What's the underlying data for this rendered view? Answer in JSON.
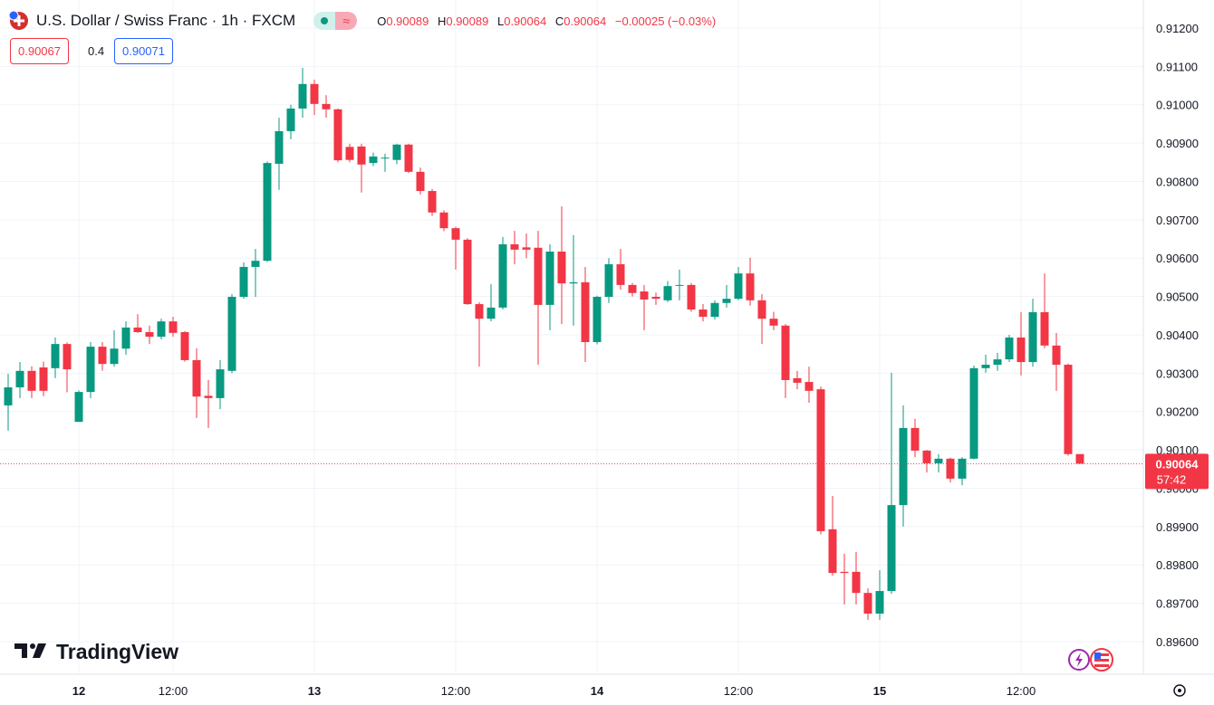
{
  "header": {
    "title": "U.S. Dollar / Swiss Franc · 1h · FXCM",
    "o_label": "O",
    "open": "0.90089",
    "h_label": "H",
    "high": "0.90089",
    "l_label": "L",
    "low": "0.90064",
    "c_label": "C",
    "close": "0.90064",
    "change": "−0.00025 (−0.03%)",
    "sell": "0.90067",
    "spread": "0.4",
    "buy": "0.90071"
  },
  "logo": "TradingView",
  "chart_data": {
    "type": "candlestick",
    "up_color": "#089981",
    "down_color": "#f23645",
    "grid": true,
    "categories": [
      null,
      null,
      null,
      null,
      null,
      null,
      "12",
      null,
      null,
      null,
      null,
      null,
      null,
      null,
      "12:00",
      null,
      null,
      null,
      null,
      null,
      null,
      null,
      null,
      null,
      null,
      null,
      "13",
      null,
      null,
      null,
      null,
      null,
      null,
      null,
      null,
      null,
      null,
      null,
      "12:00",
      null,
      null,
      null,
      null,
      null,
      null,
      null,
      null,
      null,
      null,
      null,
      "14",
      null,
      null,
      null,
      null,
      null,
      null,
      null,
      null,
      null,
      null,
      null,
      "12:00",
      null,
      null,
      null,
      null,
      null,
      null,
      null,
      null,
      null,
      null,
      null,
      "15",
      null,
      null,
      null,
      null,
      null,
      null,
      null,
      null,
      null,
      null,
      null,
      "12:00",
      null,
      null,
      null,
      null,
      null
    ],
    "open": [
      0.90216,
      0.90263,
      0.90306,
      0.90315,
      0.90313,
      0.90376,
      0.90173,
      0.90251,
      0.90369,
      0.90324,
      0.90364,
      0.90419,
      0.90407,
      0.90395,
      0.90435,
      0.90407,
      0.90334,
      0.90241,
      0.90235,
      0.90306,
      0.90499,
      0.90577,
      0.90593,
      0.90846,
      0.90931,
      0.9099,
      0.91054,
      0.91002,
      0.90988,
      0.9089,
      0.90891,
      0.90848,
      0.9086,
      0.90856,
      0.90896,
      0.90825,
      0.90775,
      0.90719,
      0.90678,
      0.90648,
      0.9048,
      0.90442,
      0.90471,
      0.90636,
      0.90628,
      0.90627,
      0.90478,
      0.90617,
      0.90534,
      0.90537,
      0.90381,
      0.90499,
      0.90584,
      0.9053,
      0.90513,
      0.90499,
      0.9049,
      0.90528,
      0.9053,
      0.90466,
      0.90447,
      0.90483,
      0.90494,
      0.9056,
      0.9049,
      0.90442,
      0.90424,
      0.90287,
      0.90277,
      0.90258,
      0.89893,
      0.89782,
      0.89782,
      0.89727,
      0.89673,
      0.89732,
      0.89956,
      0.90157,
      0.90098,
      0.90065,
      0.90077,
      0.90025,
      0.90077,
      0.90313,
      0.90322,
      0.90336,
      0.90393,
      0.90329,
      0.90459,
      0.90372,
      0.90322,
      0.90089
    ],
    "high": [
      0.90298,
      0.90329,
      0.90318,
      0.9033,
      0.90393,
      0.9038,
      0.90255,
      0.90381,
      0.90381,
      0.90412,
      0.90435,
      0.90454,
      0.90424,
      0.90442,
      0.90447,
      0.9041,
      0.90365,
      0.90282,
      0.90334,
      0.90506,
      0.90589,
      0.90624,
      0.90852,
      0.90966,
      0.91,
      0.91096,
      0.91065,
      0.91025,
      0.9099,
      0.90898,
      0.90898,
      0.90875,
      0.90872,
      0.90898,
      0.90898,
      0.90836,
      0.9078,
      0.90725,
      0.90682,
      0.90652,
      0.90485,
      0.90532,
      0.90655,
      0.90671,
      0.90664,
      0.90671,
      0.90636,
      0.90735,
      0.9066,
      0.90577,
      0.90502,
      0.906,
      0.90624,
      0.90535,
      0.9053,
      0.9051,
      0.9054,
      0.9057,
      0.90535,
      0.9048,
      0.9049,
      0.9053,
      0.90577,
      0.90601,
      0.90506,
      0.9046,
      0.90428,
      0.90306,
      0.90317,
      0.90265,
      0.8998,
      0.89829,
      0.89834,
      0.89739,
      0.89786,
      0.90301,
      0.90216,
      0.90181,
      0.901,
      0.90089,
      0.9008,
      0.90081,
      0.9032,
      0.90348,
      0.90353,
      0.904,
      0.90459,
      0.90494,
      0.9056,
      0.90405,
      0.90325,
      0.90089
    ],
    "low": [
      0.9015,
      0.90235,
      0.90235,
      0.9024,
      0.90287,
      0.9025,
      0.90173,
      0.90235,
      0.90306,
      0.90317,
      0.90348,
      0.90405,
      0.90376,
      0.90388,
      0.90395,
      0.9033,
      0.90183,
      0.90157,
      0.90206,
      0.903,
      0.90494,
      0.90499,
      0.9059,
      0.90778,
      0.9091,
      0.90966,
      0.90973,
      0.90966,
      0.9085,
      0.9085,
      0.90771,
      0.9084,
      0.90825,
      0.90845,
      0.90822,
      0.90766,
      0.9071,
      0.9067,
      0.9057,
      0.90478,
      0.90317,
      0.90435,
      0.90466,
      0.90584,
      0.906,
      0.90322,
      0.90412,
      0.90428,
      0.90424,
      0.90329,
      0.90375,
      0.90483,
      0.90518,
      0.905,
      0.90412,
      0.90478,
      0.90485,
      0.9049,
      0.9046,
      0.90435,
      0.9044,
      0.90471,
      0.9049,
      0.90476,
      0.90376,
      0.90412,
      0.90235,
      0.90258,
      0.90223,
      0.8988,
      0.89772,
      0.89697,
      0.89697,
      0.89657,
      0.89657,
      0.89725,
      0.899,
      0.90081,
      0.90041,
      0.90041,
      0.90015,
      0.90008,
      0.90075,
      0.90301,
      0.90306,
      0.90329,
      0.90294,
      0.90317,
      0.90365,
      0.90254,
      0.90085,
      0.90064
    ],
    "close": [
      0.90263,
      0.90306,
      0.90254,
      0.90254,
      0.90376,
      0.9031,
      0.90251,
      0.90369,
      0.90324,
      0.90364,
      0.90419,
      0.90407,
      0.90395,
      0.90435,
      0.90405,
      0.90334,
      0.90239,
      0.90235,
      0.9031,
      0.90499,
      0.90577,
      0.90593,
      0.90848,
      0.90931,
      0.9099,
      0.91054,
      0.91002,
      0.90988,
      0.90855,
      0.90856,
      0.90844,
      0.90865,
      0.90862,
      0.90896,
      0.90825,
      0.90775,
      0.90719,
      0.90678,
      0.90648,
      0.9048,
      0.90442,
      0.90471,
      0.90636,
      0.90622,
      0.90622,
      0.90478,
      0.90617,
      0.90534,
      0.90537,
      0.90381,
      0.90499,
      0.90584,
      0.9053,
      0.90509,
      0.90492,
      0.90494,
      0.90527,
      0.9053,
      0.90466,
      0.90447,
      0.90483,
      0.90494,
      0.9056,
      0.9049,
      0.90442,
      0.90424,
      0.90282,
      0.90275,
      0.90254,
      0.89888,
      0.89779,
      0.89779,
      0.89727,
      0.89673,
      0.89732,
      0.89956,
      0.90157,
      0.90098,
      0.90065,
      0.90077,
      0.90025,
      0.90077,
      0.90313,
      0.90322,
      0.90336,
      0.90393,
      0.90329,
      0.90459,
      0.90372,
      0.90322,
      0.90089,
      0.90064
    ],
    "ylim": [
      0.89515,
      0.91273
    ],
    "yticks": [
      {
        "value": 0.912,
        "label": "0.91200"
      },
      {
        "value": 0.911,
        "label": "0.91100"
      },
      {
        "value": 0.91,
        "label": "0.91000"
      },
      {
        "value": 0.909,
        "label": "0.90900"
      },
      {
        "value": 0.908,
        "label": "0.90800"
      },
      {
        "value": 0.907,
        "label": "0.90700"
      },
      {
        "value": 0.906,
        "label": "0.90600"
      },
      {
        "value": 0.905,
        "label": "0.90500"
      },
      {
        "value": 0.904,
        "label": "0.90400"
      },
      {
        "value": 0.903,
        "label": "0.90300"
      },
      {
        "value": 0.902,
        "label": "0.90200"
      },
      {
        "value": 0.901,
        "label": "0.90100"
      },
      {
        "value": 0.9,
        "label": "0.90000"
      },
      {
        "value": 0.899,
        "label": "0.89900"
      },
      {
        "value": 0.898,
        "label": "0.89800"
      },
      {
        "value": 0.897,
        "label": "0.89700"
      },
      {
        "value": 0.896,
        "label": "0.89600"
      }
    ],
    "last_price": 0.90064,
    "countdown": "57:42"
  }
}
